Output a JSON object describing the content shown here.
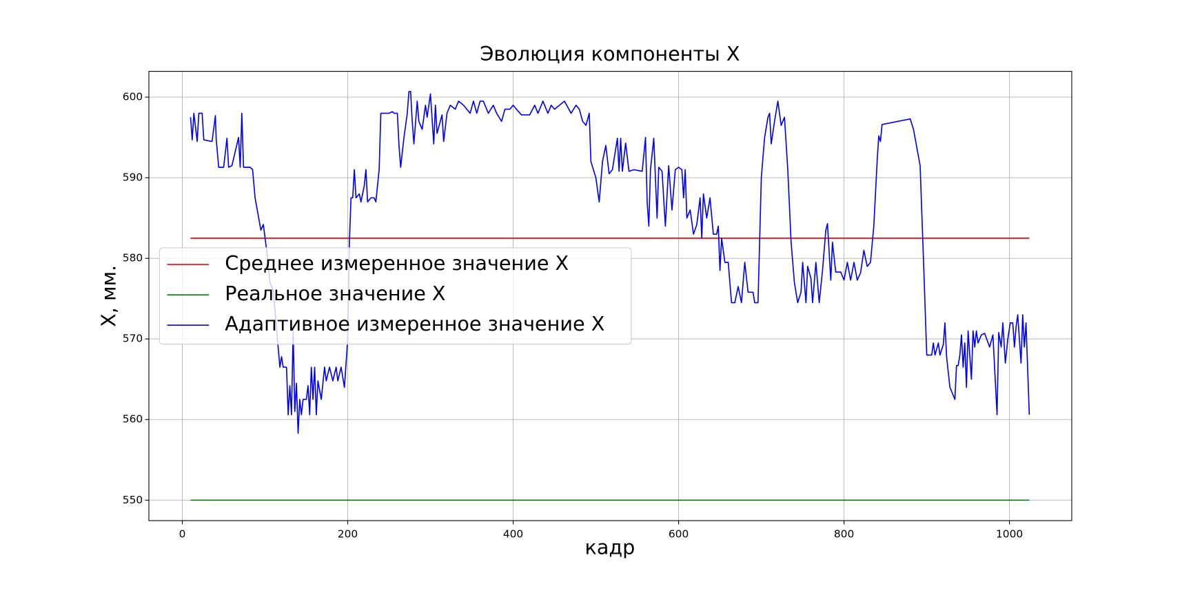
{
  "chart_data": {
    "type": "line",
    "title": "Эволюция компоненты X",
    "x_label": "кадр",
    "y_label": "X, мм.",
    "xlim": [
      -40.4,
      1075.3
    ],
    "ylim": [
      547.46,
      603.2
    ],
    "xticks": [
      0,
      200,
      400,
      600,
      800,
      1000
    ],
    "yticks": [
      550,
      560,
      570,
      580,
      590,
      600
    ],
    "grid": true,
    "legend": "center left",
    "series": [
      {
        "name": "Среднее измеренное значение X",
        "color": "#ff0000",
        "x": [
          10,
          1024
        ],
        "values": [
          582.5,
          582.5
        ]
      },
      {
        "name": "Реальное значение X",
        "color": "#008000",
        "x": [
          10,
          1024
        ],
        "values": [
          550,
          550
        ]
      },
      {
        "name": "Адаптивное измеренное значение X",
        "color": "#0000ff",
        "x": [
          10,
          12,
          14,
          18,
          20,
          24,
          26,
          36,
          40,
          41,
          44,
          50,
          54,
          56,
          60,
          68,
          70,
          72,
          74,
          82,
          85,
          88,
          95,
          98,
          102,
          106,
          110,
          115,
          118,
          120,
          122,
          126,
          128,
          130,
          132,
          134,
          136,
          138,
          140,
          142,
          144,
          146,
          150,
          152,
          154,
          156,
          158,
          160,
          162,
          164,
          168,
          172,
          174,
          178,
          182,
          186,
          188,
          192,
          196,
          200,
          202,
          204,
          206,
          208,
          210,
          214,
          216,
          220,
          222,
          224,
          228,
          232,
          234,
          238,
          240,
          250,
          254,
          256,
          260,
          262,
          264,
          268,
          272,
          274,
          276,
          278,
          280,
          284,
          286,
          290,
          294,
          296,
          300,
          304,
          306,
          308,
          314,
          316,
          320,
          324,
          330,
          334,
          340,
          344,
          348,
          352,
          356,
          360,
          364,
          370,
          376,
          380,
          386,
          390,
          396,
          400,
          404,
          410,
          420,
          426,
          430,
          436,
          442,
          446,
          450,
          456,
          462,
          470,
          476,
          480,
          484,
          488,
          492,
          494,
          500,
          504,
          508,
          512,
          516,
          520,
          526,
          528,
          530,
          532,
          536,
          540,
          546,
          556,
          560,
          562,
          564,
          566,
          570,
          574,
          576,
          580,
          584,
          588,
          592,
          596,
          600,
          604,
          606,
          608,
          610,
          614,
          618,
          622,
          626,
          628,
          630,
          634,
          638,
          642,
          646,
          648,
          650,
          652,
          656,
          660,
          664,
          668,
          672,
          676,
          680,
          684,
          690,
          692,
          696,
          700,
          704,
          708,
          710,
          712,
          716,
          720,
          724,
          728,
          732,
          736,
          740,
          744,
          748,
          750,
          754,
          756,
          760,
          762,
          766,
          770,
          774,
          778,
          780,
          784,
          786,
          790,
          796,
          800,
          804,
          808,
          812,
          816,
          820,
          824,
          828,
          832,
          836,
          840,
          842,
          844,
          846,
          880,
          884,
          892,
          896,
          900,
          906,
          908,
          910,
          914,
          916,
          920,
          922,
          924,
          928,
          932,
          934,
          936,
          938,
          940,
          942,
          944,
          946,
          948,
          950,
          954,
          956,
          958,
          960,
          962,
          966,
          970,
          976,
          980,
          985,
          987,
          990,
          992,
          995,
          998,
          1001,
          1004,
          1006,
          1008,
          1010,
          1012,
          1014,
          1016,
          1018,
          1020,
          1024
        ],
        "values": [
          597.5,
          594.7,
          598,
          594.5,
          598,
          598,
          594.7,
          594.5,
          597.7,
          594.8,
          591.3,
          591.3,
          594.9,
          591.3,
          591.5,
          595,
          591.3,
          598,
          591.3,
          591.3,
          591,
          587.5,
          583.5,
          584.2,
          581,
          577,
          576,
          570,
          566.5,
          567.8,
          566.5,
          566.5,
          560.6,
          564.2,
          560.6,
          571,
          561,
          564.5,
          558.3,
          562.5,
          560.6,
          562.5,
          562.5,
          564.2,
          560.6,
          566.5,
          562.5,
          566.5,
          560.6,
          564.8,
          562.5,
          566.5,
          564.8,
          566.5,
          564.8,
          566.5,
          564.8,
          566.5,
          564,
          570,
          582,
          587.5,
          587.5,
          591,
          587.5,
          588,
          587,
          589,
          591,
          587,
          587.5,
          587.5,
          587,
          591,
          598,
          598,
          598.2,
          598,
          598,
          594,
          591.3,
          595,
          598,
          600.7,
          600.7,
          597,
          594.2,
          599.5,
          597,
          596,
          599,
          597.5,
          600.4,
          594.2,
          599,
          595.5,
          597.8,
          594.5,
          598,
          599,
          598.5,
          599.5,
          599,
          598.5,
          598,
          599.5,
          598,
          599.5,
          599.5,
          598,
          599,
          598,
          597,
          598.5,
          598.5,
          599,
          598.5,
          597.8,
          597.8,
          599,
          598,
          599.5,
          598,
          599,
          598.5,
          599,
          599.5,
          598,
          599,
          598.5,
          597,
          596.5,
          598,
          592,
          590,
          587,
          592,
          594,
          590.5,
          591,
          594.9,
          590.8,
          594.9,
          590.8,
          594.3,
          590.8,
          591,
          590.8,
          595,
          587,
          584,
          591,
          594.9,
          585,
          591.3,
          590.8,
          584,
          591.5,
          586,
          591,
          591.3,
          591,
          587.5,
          591,
          585,
          586,
          583,
          584.2,
          587.5,
          582.5,
          588,
          585,
          587.5,
          583,
          583,
          584,
          578.5,
          582.5,
          579.5,
          579.5,
          574.5,
          574.5,
          576.5,
          574.5,
          579.5,
          575.8,
          575.8,
          574.5,
          574.5,
          590,
          595,
          597.5,
          598,
          594.2,
          597,
          599.5,
          596.5,
          597.5,
          591,
          582,
          577,
          574.5,
          575.8,
          579.5,
          574.5,
          579,
          577.5,
          574.5,
          579.5,
          574.5,
          578.5,
          583.5,
          584.3,
          577.3,
          582,
          578.3,
          578.3,
          577.3,
          579.5,
          577.3,
          579.5,
          577.3,
          578.2,
          581,
          579,
          579.5,
          584,
          592,
          595.2,
          594.5,
          596.6,
          597.3,
          596,
          591.5,
          580,
          568,
          568,
          569.5,
          568,
          569.5,
          568,
          569.3,
          572,
          567.8,
          564,
          563,
          562.5,
          566.7,
          566.7,
          568,
          570.5,
          566.5,
          569.5,
          564,
          571,
          565,
          571,
          569,
          571,
          569.5,
          570.5,
          570.7,
          569,
          570.5,
          560.6,
          570.8,
          569,
          572,
          567,
          570,
          572,
          572,
          569,
          571.5,
          573,
          570,
          567,
          573,
          569,
          572,
          560.6
        ]
      }
    ]
  }
}
